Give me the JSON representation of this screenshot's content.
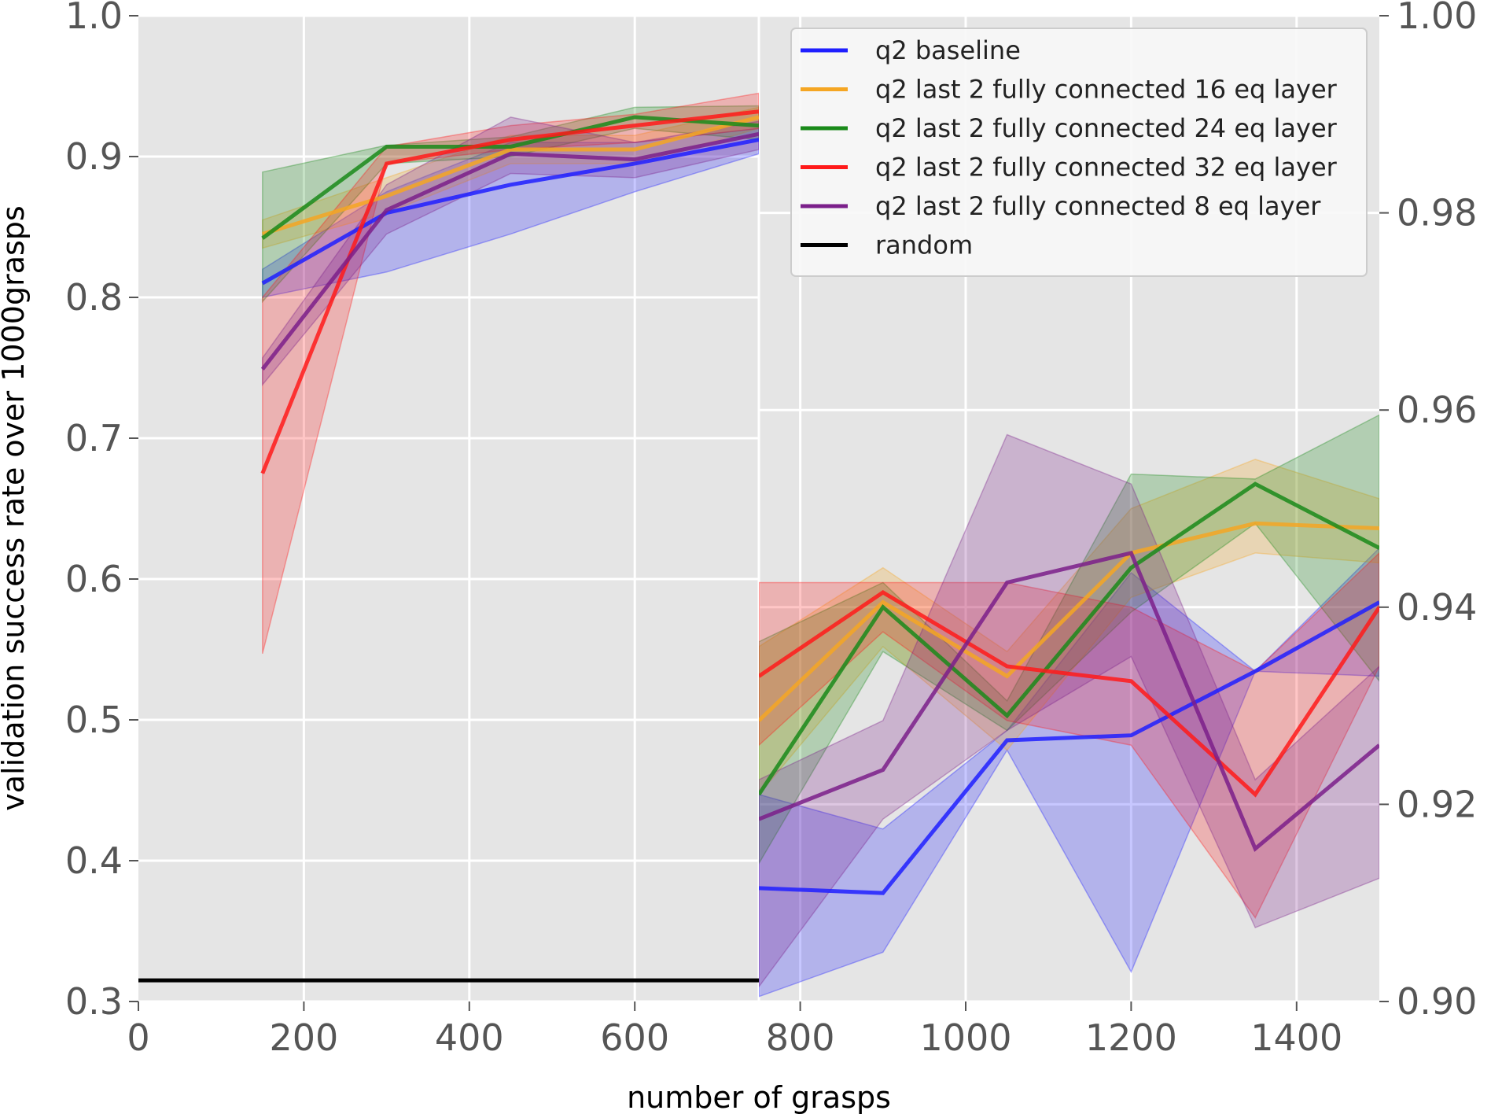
{
  "chart_data": {
    "type": "line",
    "xlabel": "number of grasps",
    "ylabel": "validation success rate over 1000grasps",
    "x_ticks": [
      0,
      200,
      400,
      600,
      800,
      1000,
      1200,
      1400
    ],
    "left_y_ticks": [
      "0.3",
      "0.4",
      "0.5",
      "0.6",
      "0.7",
      "0.8",
      "0.9",
      "1.0"
    ],
    "right_y_ticks": [
      "0.90",
      "0.92",
      "0.94",
      "0.96",
      "0.98",
      "1.00"
    ],
    "xlim": [
      0,
      1500
    ],
    "ylim_left": [
      0.3,
      1.0
    ],
    "ylim_right": [
      0.9,
      1.0
    ],
    "grid": true,
    "legend_position": "top-right",
    "background": "#e5e5e5",
    "panels": [
      {
        "axis": "left",
        "x_range": [
          0,
          750
        ],
        "series": [
          {
            "name": "q2 baseline",
            "color": "#1f1fff",
            "x": [
              150,
              300,
              450,
              600,
              750
            ],
            "y": [
              0.81,
              0.86,
              0.88,
              0.895,
              0.912
            ],
            "lower": [
              0.8,
              0.818,
              0.845,
              0.875,
              0.902
            ],
            "upper": [
              0.82,
              0.875,
              0.91,
              0.91,
              0.92
            ]
          },
          {
            "name": "q2 last 2 fully connected 16 eq layer",
            "color": "#f5a623",
            "x": [
              150,
              300,
              450,
              600,
              750
            ],
            "y": [
              0.845,
              0.872,
              0.905,
              0.905,
              0.928
            ],
            "lower": [
              0.835,
              0.86,
              0.895,
              0.895,
              0.92
            ],
            "upper": [
              0.855,
              0.885,
              0.915,
              0.915,
              0.935
            ]
          },
          {
            "name": "q2 last 2 fully connected 24 eq layer",
            "color": "#1a8a1a",
            "x": [
              150,
              300,
              450,
              600,
              750
            ],
            "y": [
              0.842,
              0.907,
              0.907,
              0.928,
              0.922
            ],
            "lower": [
              0.797,
              0.895,
              0.9,
              0.92,
              0.912
            ],
            "upper": [
              0.889,
              0.908,
              0.914,
              0.935,
              0.936
            ]
          },
          {
            "name": "q2 last 2 fully connected 32 eq layer",
            "color": "#ff1a1a",
            "x": [
              150,
              300,
              450,
              600,
              750
            ],
            "y": [
              0.675,
              0.895,
              0.912,
              0.922,
              0.932
            ],
            "lower": [
              0.547,
              0.895,
              0.905,
              0.91,
              0.92
            ],
            "upper": [
              0.8,
              0.907,
              0.922,
              0.93,
              0.945
            ]
          },
          {
            "name": "q2 last 2 fully connected 8 eq layer",
            "color": "#7b1f8a",
            "x": [
              150,
              300,
              450,
              600,
              750
            ],
            "y": [
              0.749,
              0.862,
              0.902,
              0.898,
              0.916
            ],
            "lower": [
              0.738,
              0.845,
              0.888,
              0.885,
              0.905
            ],
            "upper": [
              0.757,
              0.88,
              0.928,
              0.91,
              0.925
            ]
          },
          {
            "name": "random",
            "color": "#000000",
            "x": [
              0,
              750
            ],
            "y": [
              0.315,
              0.315
            ]
          }
        ]
      },
      {
        "axis": "right",
        "x_range": [
          750,
          1500
        ],
        "series": [
          {
            "name": "q2 baseline",
            "color": "#1f1fff",
            "x": [
              750,
              900,
              1050,
              1200,
              1350,
              1500
            ],
            "y": [
              0.9115,
              0.911,
              0.9265,
              0.927,
              0.9335,
              0.9405
            ],
            "lower": [
              0.9005,
              0.905,
              0.9255,
              0.903,
              0.9335,
              0.933
            ],
            "upper": [
              0.921,
              0.9175,
              0.9275,
              0.9435,
              0.9335,
              0.946
            ]
          },
          {
            "name": "q2 last 2 fully connected 16 eq layer",
            "color": "#f5a623",
            "x": [
              750,
              900,
              1050,
              1200,
              1350,
              1500
            ],
            "y": [
              0.9285,
              0.9405,
              0.933,
              0.9455,
              0.9485,
              0.948
            ],
            "lower": [
              0.921,
              0.936,
              0.9255,
              0.941,
              0.9455,
              0.9445
            ],
            "upper": [
              0.936,
              0.944,
              0.9355,
              0.95,
              0.955,
              0.951
            ]
          },
          {
            "name": "q2 last 2 fully connected 24 eq layer",
            "color": "#1a8a1a",
            "x": [
              750,
              900,
              1050,
              1200,
              1350,
              1500
            ],
            "y": [
              0.921,
              0.94,
              0.929,
              0.944,
              0.9525,
              0.946
            ],
            "lower": [
              0.914,
              0.9355,
              0.9275,
              0.9395,
              0.9485,
              0.9325
            ],
            "upper": [
              0.9365,
              0.9425,
              0.9305,
              0.9535,
              0.953,
              0.9595
            ]
          },
          {
            "name": "q2 last 2 fully connected 32 eq layer",
            "color": "#ff1a1a",
            "x": [
              750,
              900,
              1050,
              1200,
              1350,
              1500
            ],
            "y": [
              0.933,
              0.9415,
              0.934,
              0.9325,
              0.921,
              0.94
            ],
            "lower": [
              0.926,
              0.9375,
              0.9285,
              0.926,
              0.9085,
              0.934
            ],
            "upper": [
              0.9425,
              0.9425,
              0.9425,
              0.94,
              0.9335,
              0.9455
            ]
          },
          {
            "name": "q2 last 2 fully connected 8 eq layer",
            "color": "#7b1f8a",
            "x": [
              750,
              900,
              1050,
              1200,
              1350,
              1500
            ],
            "y": [
              0.9185,
              0.9235,
              0.9425,
              0.9455,
              0.9155,
              0.926
            ],
            "lower": [
              0.9015,
              0.9185,
              0.9275,
              0.935,
              0.9075,
              0.9125
            ],
            "upper": [
              0.9225,
              0.9285,
              0.9575,
              0.9525,
              0.9225,
              0.934
            ]
          }
        ]
      }
    ],
    "legend": [
      {
        "label": "q2 baseline",
        "color": "#1f1fff"
      },
      {
        "label": "q2 last 2 fully connected 16 eq layer",
        "color": "#f5a623"
      },
      {
        "label": "q2 last 2 fully connected 24 eq layer",
        "color": "#1a8a1a"
      },
      {
        "label": "q2 last 2 fully connected 32 eq layer",
        "color": "#ff1a1a"
      },
      {
        "label": "q2 last 2 fully connected 8 eq layer",
        "color": "#7b1f8a"
      },
      {
        "label": "random",
        "color": "#000000"
      }
    ]
  }
}
